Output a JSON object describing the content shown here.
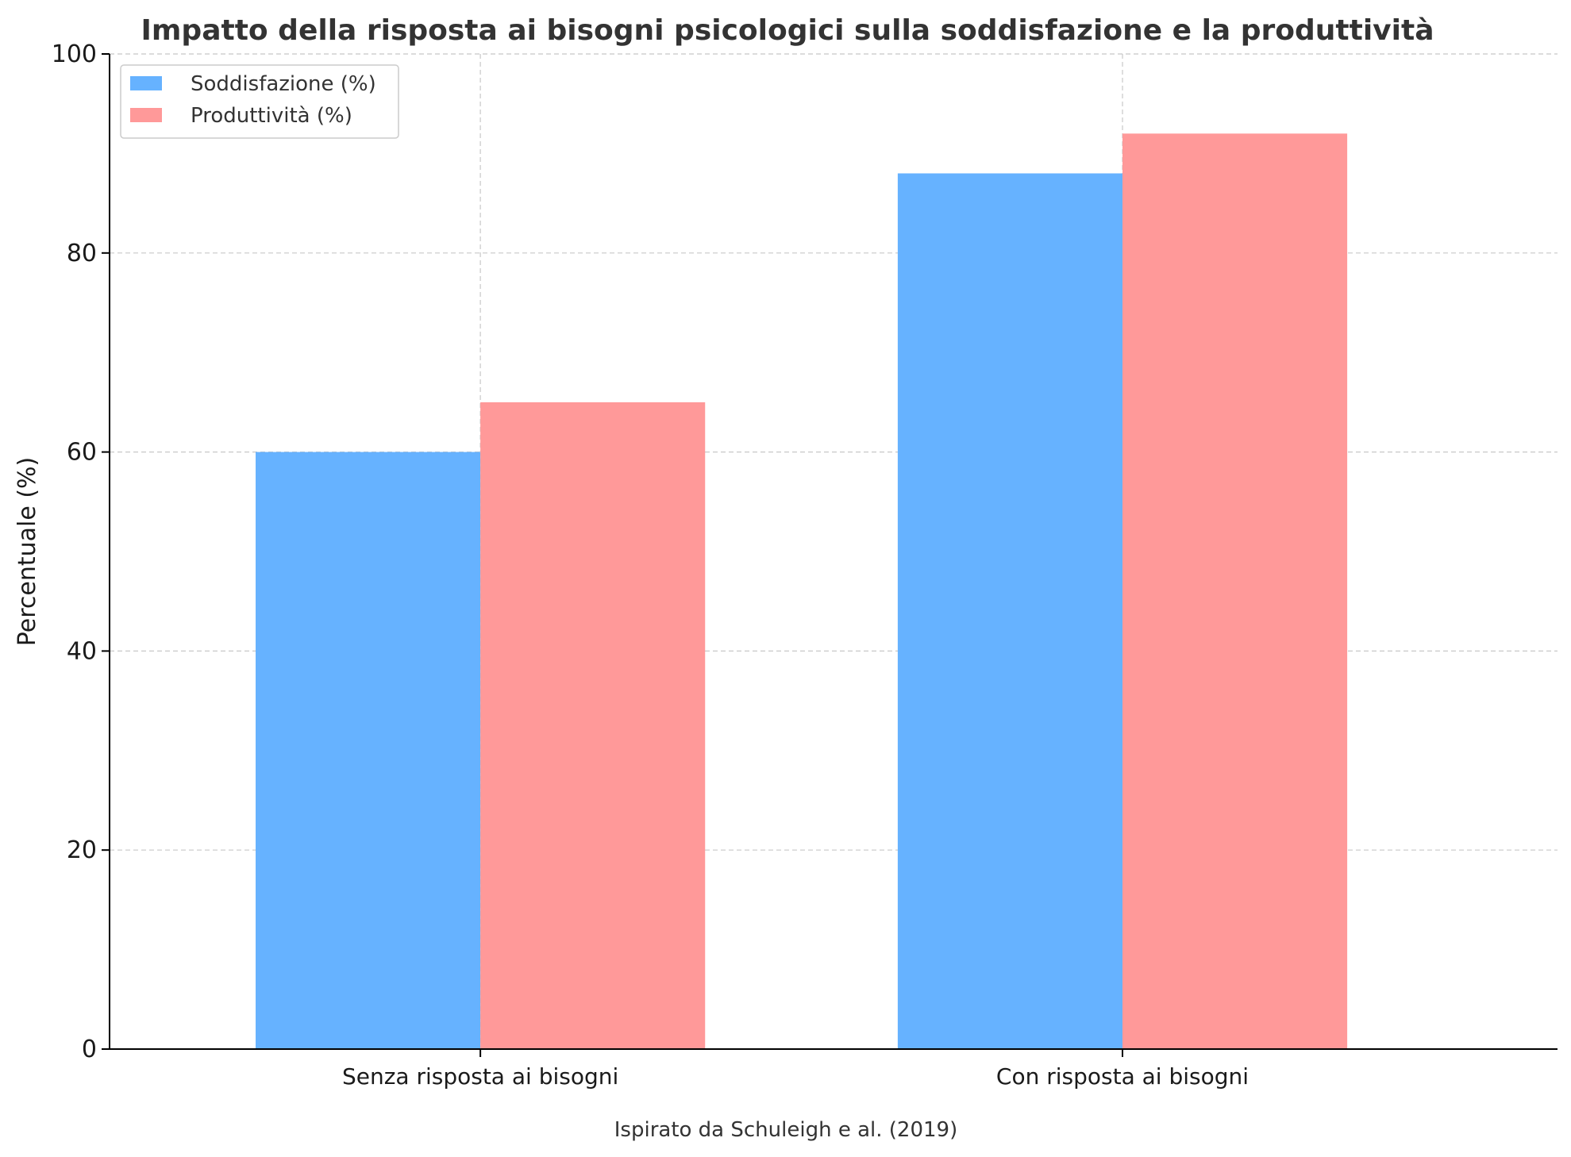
{
  "chart_data": {
    "type": "bar",
    "title": "Impatto della risposta ai bisogni psicologici sulla soddisfazione e la produttività",
    "xlabel": "",
    "ylabel": "Percentuale (%)",
    "categories": [
      "Senza risposta ai bisogni",
      "Con risposta ai bisogni"
    ],
    "series": [
      {
        "name": "Soddisfazione (%)",
        "values": [
          60,
          88
        ],
        "color": "#66b2ff"
      },
      {
        "name": "Produttività (%)",
        "values": [
          65,
          92
        ],
        "color": "#ff9999"
      }
    ],
    "ylim": [
      0,
      100
    ],
    "yticks": [
      0,
      20,
      40,
      60,
      80,
      100
    ],
    "grid": true,
    "legend": "top-left",
    "note": "Ispirato da Schuleigh e al. (2019)"
  }
}
